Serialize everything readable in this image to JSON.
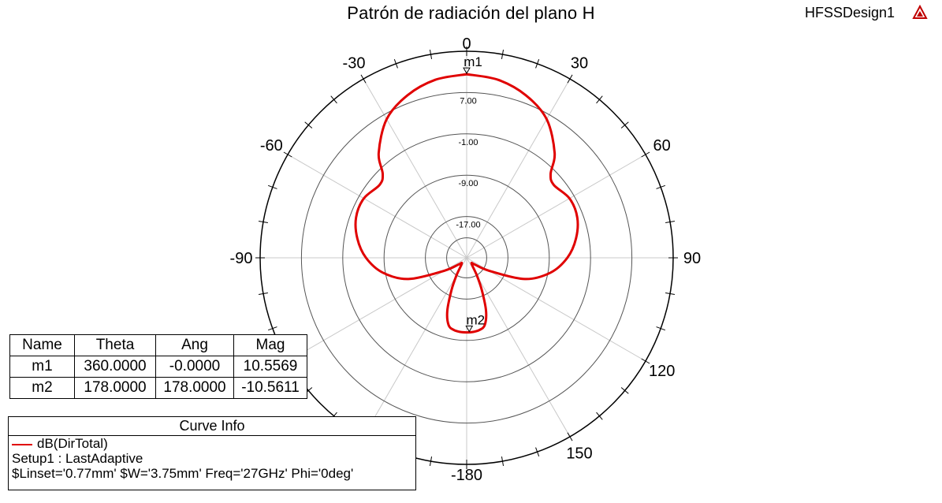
{
  "header": {
    "title": "Patrón de radiación del plano H",
    "design_name": "HFSSDesign1",
    "design_icon": "ansys-logo-icon"
  },
  "chart_data": {
    "type": "polar",
    "title": "Patrón de radiación del plano H",
    "series": [
      {
        "name": "dB(DirTotal)",
        "color": "#e00000",
        "theta_deg": [
          0,
          10,
          20,
          30,
          40,
          45,
          50,
          60,
          70,
          80,
          90,
          100,
          110,
          120,
          130,
          140,
          150,
          155,
          160,
          165,
          170,
          175,
          180,
          185,
          190,
          195,
          200,
          205,
          210,
          220,
          230,
          240,
          250,
          260,
          270,
          280,
          290,
          300,
          310,
          315,
          320,
          330,
          340,
          350,
          360
        ],
        "mag_db": [
          10.56,
          10.0,
          8.5,
          6.0,
          1.5,
          -2.0,
          -3.0,
          -2.0,
          -2.2,
          -3.5,
          -5.5,
          -8.5,
          -13.0,
          -20.0,
          -23.0,
          -23.5,
          -21.0,
          -18.0,
          -14.0,
          -11.5,
          -10.8,
          -10.6,
          -10.56,
          -10.6,
          -10.8,
          -11.5,
          -14.0,
          -18.0,
          -21.0,
          -23.5,
          -23.0,
          -20.0,
          -13.0,
          -8.5,
          -5.5,
          -3.5,
          -2.2,
          -2.0,
          -3.0,
          -2.0,
          1.5,
          6.0,
          8.5,
          10.0,
          10.56
        ]
      }
    ],
    "radial_range": [
      -25,
      15
    ],
    "radial_ticks": [
      "7.00",
      "-1.00",
      "-9.00",
      "-17.00"
    ],
    "radial_tick_values": [
      7,
      -1,
      -9,
      -17
    ],
    "angle_labels": [
      "0",
      "30",
      "60",
      "90",
      "120",
      "150",
      "-180",
      "-150",
      "-120",
      "-90",
      "-60",
      "-30"
    ],
    "angle_label_values": [
      0,
      30,
      60,
      90,
      120,
      150,
      180,
      -150,
      -120,
      -90,
      -60,
      -30
    ],
    "grid": true,
    "markers": [
      {
        "name": "m1",
        "theta": 0,
        "mag": 10.5569
      },
      {
        "name": "m2",
        "theta": 178,
        "mag": -10.5611
      }
    ]
  },
  "marker_table": {
    "headers": [
      "Name",
      "Theta",
      "Ang",
      "Mag"
    ],
    "rows": [
      [
        "m1",
        "360.0000",
        "-0.0000",
        "10.5569"
      ],
      [
        "m2",
        "178.0000",
        "178.0000",
        "-10.5611"
      ]
    ]
  },
  "curve_info": {
    "title": "Curve Info",
    "trace_name": "dB(DirTotal)",
    "setup": "Setup1 : LastAdaptive",
    "params": "$Linset='0.77mm' $W='3.75mm' Freq='27GHz' Phi='0deg'"
  }
}
